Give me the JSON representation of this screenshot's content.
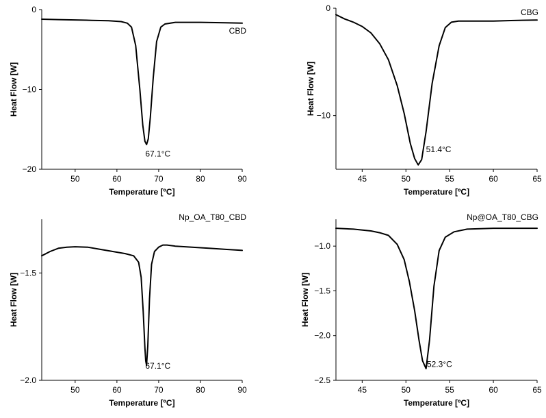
{
  "chart_data": [
    {
      "type": "line",
      "title": "",
      "xlabel": "Temperature [ºC]",
      "ylabel": "Heat Flow [W]",
      "xlim": [
        42,
        90
      ],
      "ylim": [
        -20,
        0
      ],
      "xticks": [
        "50",
        "60",
        "70",
        "80",
        "90"
      ],
      "yticks": [
        "0",
        "−10",
        "−20"
      ],
      "xtick_values": [
        50,
        60,
        70,
        80,
        90
      ],
      "ytick_values": [
        0,
        -10,
        -20
      ],
      "series": [
        {
          "name": "CBD",
          "color": "#000000",
          "x": [
            42,
            46,
            50,
            54,
            58,
            61,
            62.5,
            63.5,
            64.5,
            65.5,
            66.2,
            66.7,
            67.1,
            67.5,
            68.0,
            68.7,
            69.5,
            70.5,
            71.5,
            74,
            80,
            86,
            90
          ],
          "y": [
            -1.2,
            -1.25,
            -1.3,
            -1.35,
            -1.4,
            -1.5,
            -1.7,
            -2.2,
            -4.5,
            -10.0,
            -14.5,
            -16.5,
            -16.9,
            -16.2,
            -13.5,
            -8.5,
            -4.0,
            -2.2,
            -1.8,
            -1.6,
            -1.6,
            -1.65,
            -1.7
          ]
        }
      ],
      "annotations": [
        {
          "text": "67.1°C",
          "x": 66.8,
          "y": -18.4
        }
      ]
    },
    {
      "type": "line",
      "title": "",
      "xlabel": "Temperature [ºC]",
      "ylabel": "Heat Flow [W]",
      "xlim": [
        42,
        65
      ],
      "ylim": [
        -15,
        0
      ],
      "xticks": [
        "45",
        "50",
        "55",
        "60",
        "65"
      ],
      "yticks": [
        "0",
        "−10"
      ],
      "xtick_values": [
        45,
        50,
        55,
        60,
        65
      ],
      "ytick_values": [
        0,
        -10
      ],
      "series": [
        {
          "name": "CBG",
          "color": "#000000",
          "x": [
            42,
            43,
            44,
            45,
            46,
            47,
            48,
            49,
            49.8,
            50.5,
            51.0,
            51.4,
            51.8,
            52.3,
            53.0,
            53.8,
            54.5,
            55.2,
            56,
            58,
            60,
            62,
            65
          ],
          "y": [
            -0.6,
            -1.0,
            -1.3,
            -1.7,
            -2.3,
            -3.3,
            -4.8,
            -7.2,
            -9.8,
            -12.6,
            -14.0,
            -14.6,
            -14.1,
            -11.5,
            -7.0,
            -3.5,
            -1.8,
            -1.3,
            -1.2,
            -1.2,
            -1.2,
            -1.15,
            -1.1
          ]
        }
      ],
      "annotations": [
        {
          "text": "51.4°C",
          "x": 52.3,
          "y": -13.4
        }
      ]
    },
    {
      "type": "line",
      "title": "",
      "xlabel": "Temperature [ºC]",
      "ylabel": "Heat Flow [W]",
      "xlim": [
        42,
        90
      ],
      "ylim": [
        -2.0,
        -1.25
      ],
      "xticks": [
        "50",
        "60",
        "70",
        "80",
        "90"
      ],
      "yticks": [
        "−1.5",
        "−2.0"
      ],
      "xtick_values": [
        50,
        60,
        70,
        80,
        90
      ],
      "ytick_values": [
        -1.5,
        -2.0
      ],
      "series": [
        {
          "name": "Np_OA_T80_CBD",
          "color": "#000000",
          "x": [
            42,
            44,
            46,
            48,
            50,
            53,
            56,
            59,
            62,
            64,
            65.2,
            65.8,
            66.3,
            66.7,
            66.9,
            67.1,
            67.4,
            67.8,
            68.3,
            69,
            70,
            71,
            72,
            74,
            78,
            82,
            86,
            90
          ],
          "y": [
            -1.42,
            -1.4,
            -1.385,
            -1.38,
            -1.378,
            -1.38,
            -1.39,
            -1.4,
            -1.41,
            -1.42,
            -1.45,
            -1.52,
            -1.68,
            -1.85,
            -1.91,
            -1.93,
            -1.84,
            -1.62,
            -1.46,
            -1.4,
            -1.38,
            -1.37,
            -1.37,
            -1.375,
            -1.38,
            -1.385,
            -1.39,
            -1.395
          ]
        }
      ],
      "annotations": [
        {
          "text": "67.1°C",
          "x": 66.8,
          "y": -1.945
        }
      ]
    },
    {
      "type": "line",
      "title": "",
      "xlabel": "Temperature [ºC]",
      "ylabel": "Heat Flow [W]",
      "xlim": [
        42,
        65
      ],
      "ylim": [
        -2.5,
        -0.7
      ],
      "xticks": [
        "45",
        "50",
        "55",
        "60",
        "65"
      ],
      "yticks": [
        "−1.0",
        "−1.5",
        "−2.0",
        "−2.5"
      ],
      "xtick_values": [
        45,
        50,
        55,
        60,
        65
      ],
      "ytick_values": [
        -1.0,
        -1.5,
        -2.0,
        -2.5
      ],
      "series": [
        {
          "name": "Np@OA_T80_CBG",
          "color": "#000000",
          "x": [
            42,
            44,
            46,
            47,
            48,
            49,
            49.8,
            50.4,
            51.0,
            51.5,
            51.9,
            52.3,
            52.7,
            53.2,
            53.8,
            54.5,
            55.5,
            57,
            60,
            63,
            65
          ],
          "y": [
            -0.8,
            -0.81,
            -0.83,
            -0.85,
            -0.88,
            -0.98,
            -1.15,
            -1.4,
            -1.72,
            -2.05,
            -2.28,
            -2.37,
            -2.05,
            -1.45,
            -1.05,
            -0.9,
            -0.84,
            -0.81,
            -0.8,
            -0.8,
            -0.8
          ]
        }
      ],
      "annotations": [
        {
          "text": "52.3°C",
          "x": 52.4,
          "y": -2.35
        }
      ]
    }
  ]
}
